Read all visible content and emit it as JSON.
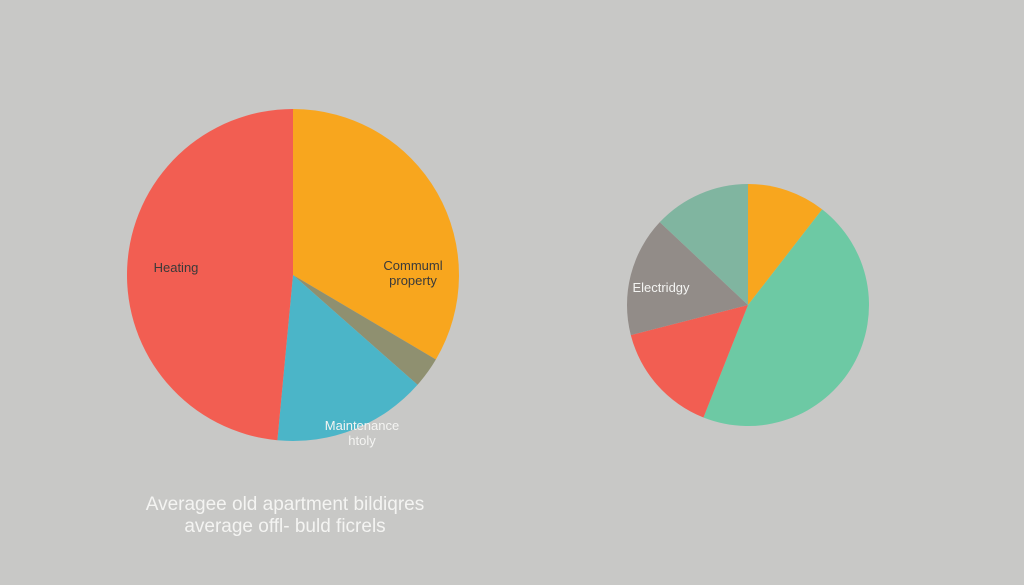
{
  "chart_data": [
    {
      "type": "pie",
      "caption_lines": [
        "Averagee old apartment bildiqres",
        "average offl- buld ficrels"
      ],
      "slices": [
        {
          "label_lines": [
            "Commuml",
            "property"
          ],
          "value": 33.5,
          "color": "#f8a61e",
          "label_color": "#3a3a3a"
        },
        {
          "label_lines": [],
          "value": 3.0,
          "color": "#8f9070",
          "label_color": ""
        },
        {
          "label_lines": [
            "Maintenance",
            "htoly"
          ],
          "value": 15.0,
          "color": "#4bb5c8",
          "label_color": "#f4f4f2"
        },
        {
          "label_lines": [
            "Heating"
          ],
          "value": 48.5,
          "color": "#f25e52",
          "label_color": "#3a3a3a"
        }
      ]
    },
    {
      "type": "pie",
      "slices": [
        {
          "label_lines": [],
          "value": 10.5,
          "color": "#f8a61e",
          "label_color": ""
        },
        {
          "label_lines": [],
          "value": 45.5,
          "color": "#6dc9a4",
          "label_color": ""
        },
        {
          "label_lines": [],
          "value": 15.0,
          "color": "#f25e52",
          "label_color": ""
        },
        {
          "label_lines": [
            "Electridgy"
          ],
          "value": 16.0,
          "color": "#928c88",
          "label_color": "#f4f4f2"
        },
        {
          "label_lines": [],
          "value": 13.0,
          "color": "#80b5a0",
          "label_color": ""
        }
      ]
    }
  ]
}
